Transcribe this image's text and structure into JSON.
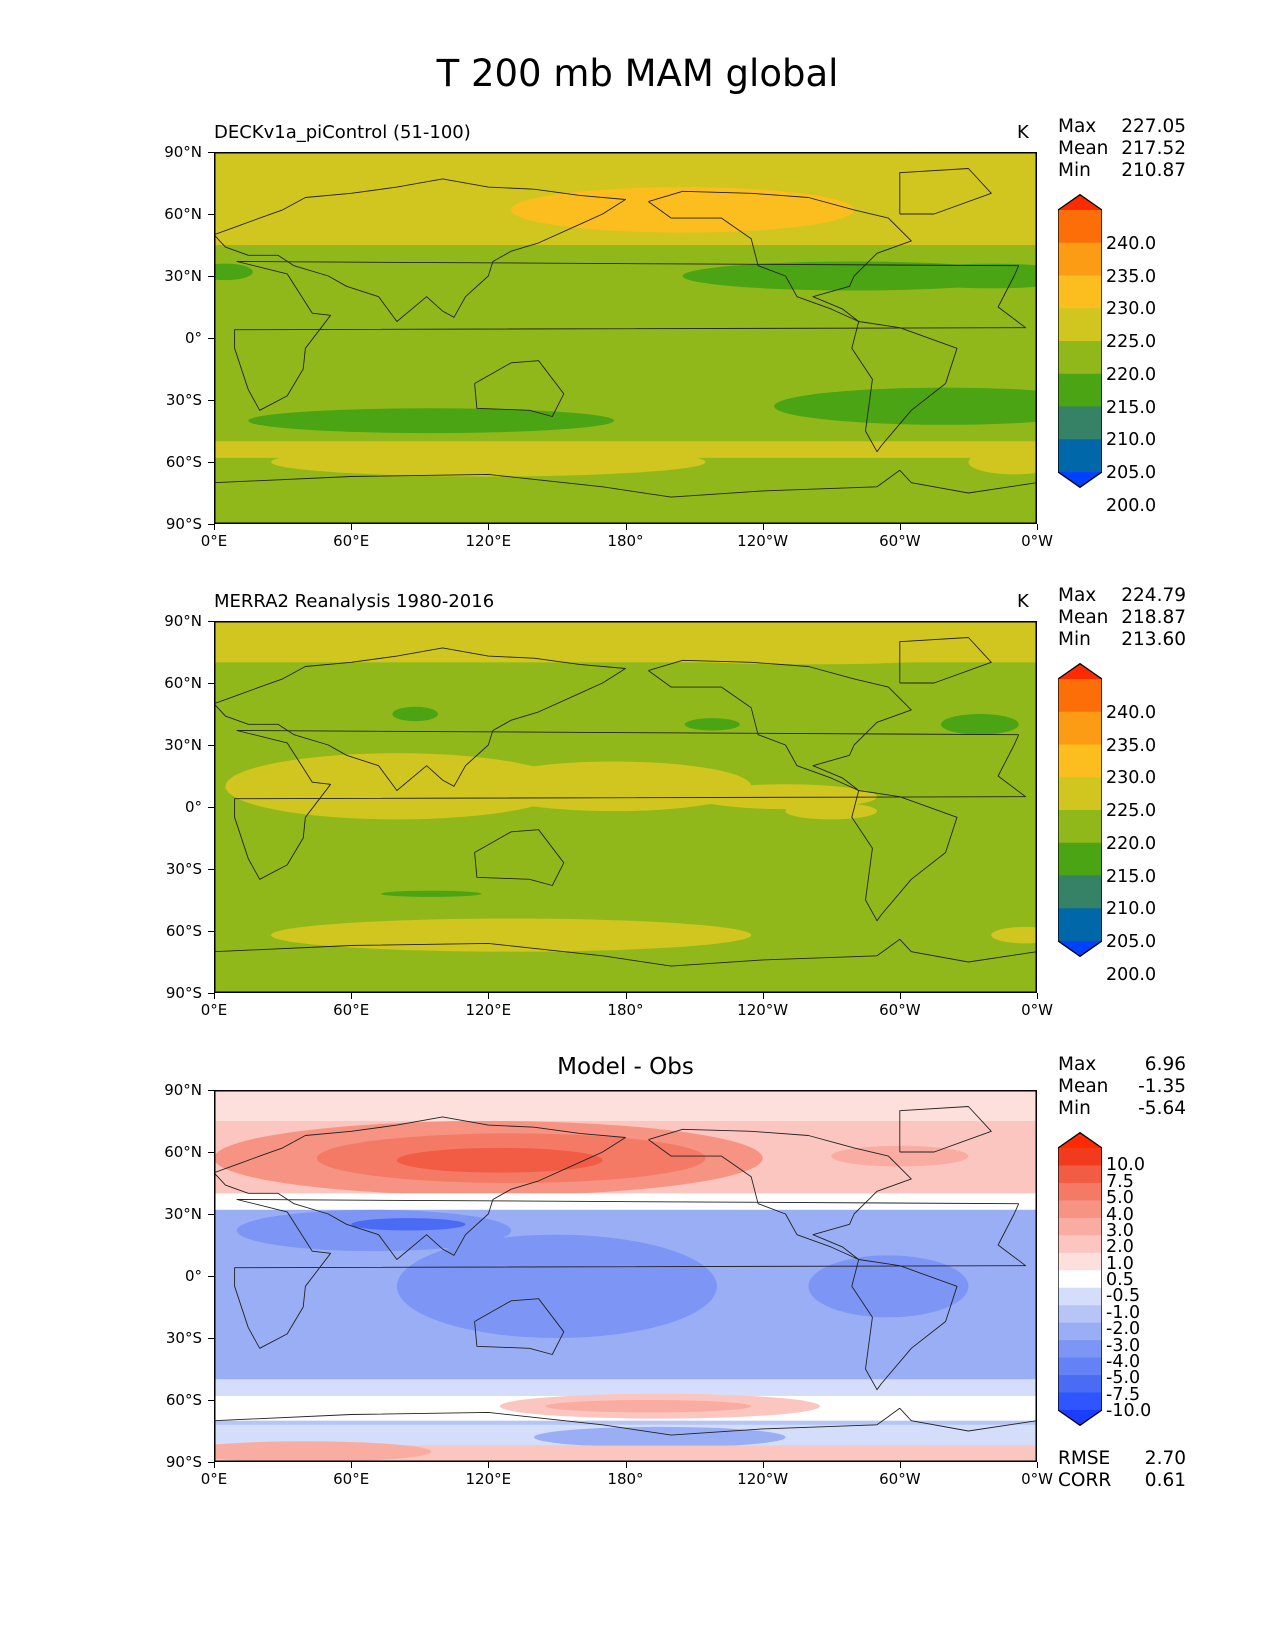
{
  "title": "T 200 mb MAM global",
  "units": "K",
  "lat_ticks": [
    "90°N",
    "60°N",
    "30°N",
    "0°",
    "30°S",
    "60°S",
    "90°S"
  ],
  "lon_ticks": [
    "0°E",
    "60°E",
    "120°E",
    "180°",
    "120°W",
    "60°W",
    "0°W"
  ],
  "panels": [
    {
      "title": "DECKv1a_piControl (51-100)",
      "units": "K",
      "stats": {
        "max_label": "Max",
        "max": "227.05",
        "mean_label": "Mean",
        "mean": "217.52",
        "min_label": "Min",
        "min": "210.87"
      },
      "levels": [
        "240.0",
        "235.0",
        "230.0",
        "225.0",
        "220.0",
        "215.0",
        "210.0",
        "205.0",
        "200.0"
      ]
    },
    {
      "title": "MERRA2 Reanalysis 1980-2016",
      "units": "K",
      "stats": {
        "max_label": "Max",
        "max": "224.79",
        "mean_label": "Mean",
        "mean": "218.87",
        "min_label": "Min",
        "min": "213.60"
      },
      "levels": [
        "240.0",
        "235.0",
        "230.0",
        "225.0",
        "220.0",
        "215.0",
        "210.0",
        "205.0",
        "200.0"
      ]
    },
    {
      "title": "Model - Obs",
      "stats": {
        "max_label": "Max",
        "max": "6.96",
        "mean_label": "Mean",
        "mean": "-1.35",
        "min_label": "Min",
        "min": "-5.64"
      },
      "levels": [
        "10.0",
        "7.5",
        "5.0",
        "4.0",
        "3.0",
        "2.0",
        "1.0",
        "0.5",
        "-0.5",
        "-1.0",
        "-2.0",
        "-3.0",
        "-4.0",
        "-5.0",
        "-7.5",
        "-10.0"
      ],
      "metrics": {
        "rmse_label": "RMSE",
        "rmse": "2.70",
        "corr_label": "CORR",
        "corr": "0.61"
      }
    }
  ],
  "chart_data": [
    {
      "type": "heatmap",
      "title": "DECKv1a_piControl (51-100)",
      "variable": "T 200 mb MAM",
      "units": "K",
      "xlim": [
        0,
        360
      ],
      "ylim": [
        -90,
        90
      ],
      "contour_levels": [
        200,
        205,
        210,
        215,
        220,
        225,
        230,
        235,
        240
      ],
      "colors": [
        "#0040ff",
        "#0068a8",
        "#358267",
        "#4aa414",
        "#91b81a",
        "#d1c61f",
        "#fcbd1e",
        "#fc9b14",
        "#fc6e07",
        "#fc2b00"
      ],
      "max": 227.05,
      "mean": 217.52,
      "min": 210.87
    },
    {
      "type": "heatmap",
      "title": "MERRA2 Reanalysis 1980-2016",
      "variable": "T 200 mb MAM",
      "units": "K",
      "xlim": [
        0,
        360
      ],
      "ylim": [
        -90,
        90
      ],
      "contour_levels": [
        200,
        205,
        210,
        215,
        220,
        225,
        230,
        235,
        240
      ],
      "colors": [
        "#0040ff",
        "#0068a8",
        "#358267",
        "#4aa414",
        "#91b81a",
        "#d1c61f",
        "#fcbd1e",
        "#fc9b14",
        "#fc6e07",
        "#fc2b00"
      ],
      "max": 224.79,
      "mean": 218.87,
      "min": 213.6
    },
    {
      "type": "heatmap",
      "title": "Model - Obs",
      "variable": "T 200 mb MAM",
      "xlim": [
        0,
        360
      ],
      "ylim": [
        -90,
        90
      ],
      "contour_levels": [
        -10,
        -7.5,
        -5,
        -4,
        -3,
        -2,
        -1,
        -0.5,
        0.5,
        1,
        2,
        3,
        4,
        5,
        7.5,
        10
      ],
      "colors": [
        "#1a3dff",
        "#2e55ff",
        "#4a6cf5",
        "#6482f5",
        "#7d96f5",
        "#9aaef5",
        "#b6c5f5",
        "#d4ddfa",
        "#ffffff",
        "#fde0dc",
        "#fbc6bf",
        "#f9aca1",
        "#f69383",
        "#f47a66",
        "#f25c45",
        "#f23a1c",
        "#ff2a00"
      ],
      "max": 6.96,
      "mean": -1.35,
      "min": -5.64,
      "rmse": 2.7,
      "corr": 0.61
    }
  ]
}
